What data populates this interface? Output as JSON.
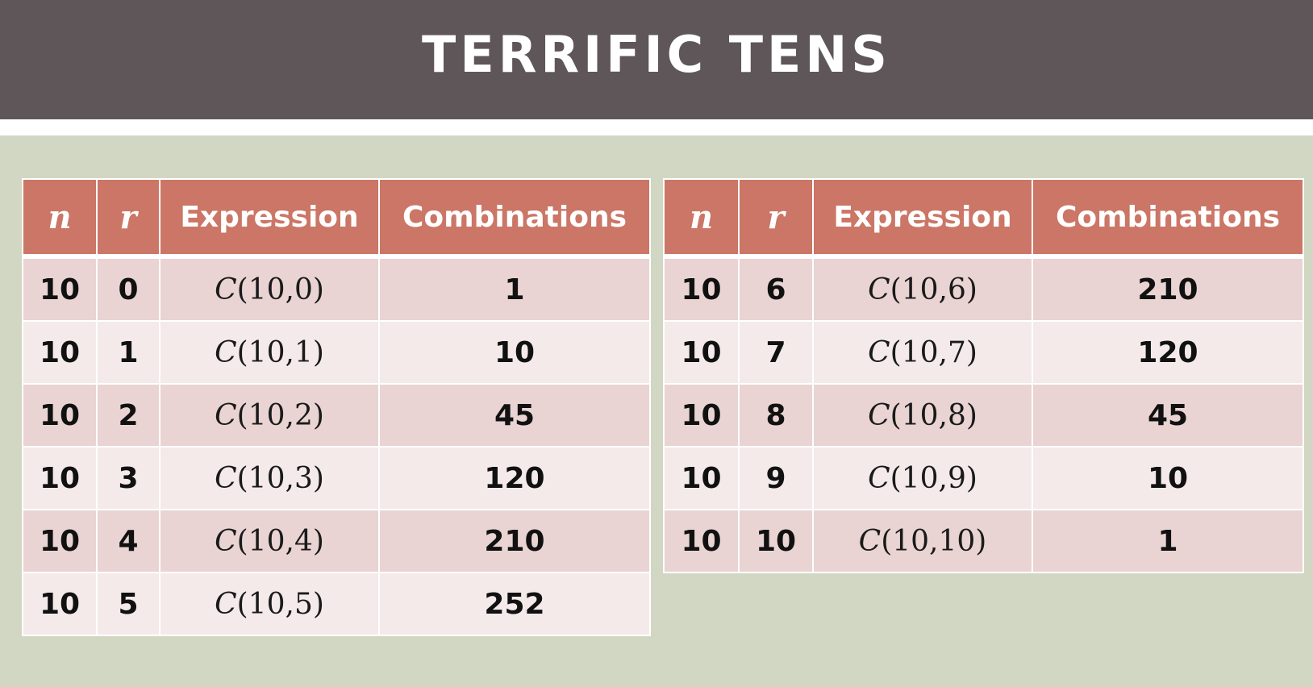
{
  "title": "TERRIFIC TENS",
  "headers": {
    "n": "n",
    "r": "r",
    "expression": "Expression",
    "combinations": "Combinations"
  },
  "left_table": [
    {
      "n": "10",
      "r": "0",
      "expr_fn": "C",
      "expr_args": "(10,0)",
      "value": "1"
    },
    {
      "n": "10",
      "r": "1",
      "expr_fn": "C",
      "expr_args": "(10,1)",
      "value": "10"
    },
    {
      "n": "10",
      "r": "2",
      "expr_fn": "C",
      "expr_args": "(10,2)",
      "value": "45"
    },
    {
      "n": "10",
      "r": "3",
      "expr_fn": "C",
      "expr_args": "(10,3)",
      "value": "120"
    },
    {
      "n": "10",
      "r": "4",
      "expr_fn": "C",
      "expr_args": "(10,4)",
      "value": "210"
    },
    {
      "n": "10",
      "r": "5",
      "expr_fn": "C",
      "expr_args": "(10,5)",
      "value": "252"
    }
  ],
  "right_table": [
    {
      "n": "10",
      "r": "6",
      "expr_fn": "C",
      "expr_args": "(10,6)",
      "value": "210"
    },
    {
      "n": "10",
      "r": "7",
      "expr_fn": "C",
      "expr_args": "(10,7)",
      "value": "120"
    },
    {
      "n": "10",
      "r": "8",
      "expr_fn": "C",
      "expr_args": "(10,8)",
      "value": "45"
    },
    {
      "n": "10",
      "r": "9",
      "expr_fn": "C",
      "expr_args": "(10,9)",
      "value": "10"
    },
    {
      "n": "10",
      "r": "10",
      "expr_fn": "C",
      "expr_args": "(10,10)",
      "value": "1"
    }
  ],
  "colors": {
    "title_bar": "#5e5659",
    "background": "#d2d7c3",
    "header": "#cb7666",
    "row_dark": "#e9d4d3",
    "row_light": "#f4eaea"
  }
}
